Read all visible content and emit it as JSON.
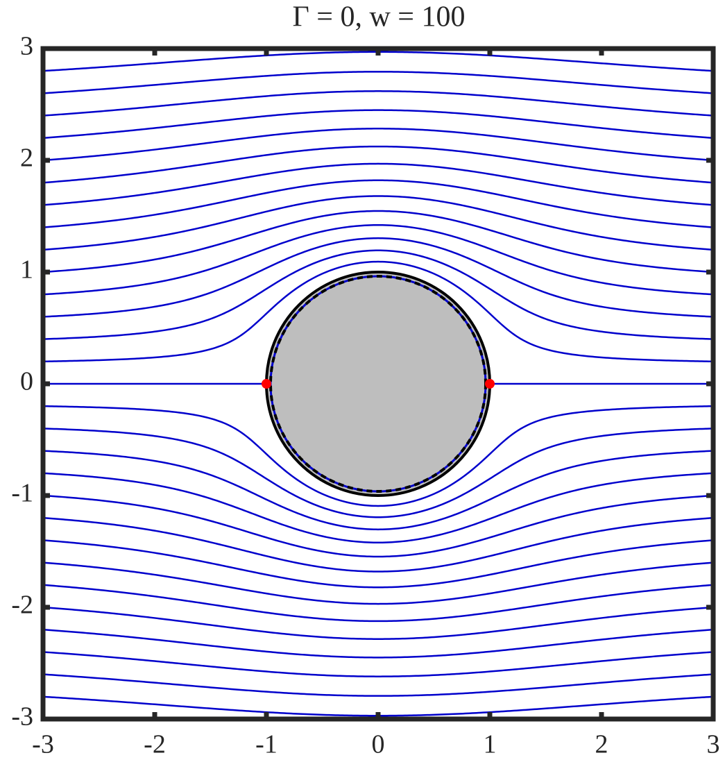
{
  "chart_data": {
    "type": "streamline",
    "title": "Γ = 0, w = 100",
    "xlim": [
      -3,
      3
    ],
    "ylim": [
      -3,
      3
    ],
    "xticks": [
      -3,
      -2,
      -1,
      0,
      1,
      2,
      3
    ],
    "yticks": [
      -3,
      -2,
      -1,
      0,
      1,
      2,
      3
    ],
    "start_x": -3,
    "start_y": [
      -2.8,
      -2.6,
      -2.4,
      -2.2,
      -2.0,
      -1.8,
      -1.6,
      -1.4,
      -1.2,
      -1.0,
      -0.8,
      -0.6,
      -0.4,
      -0.2,
      0,
      0.2,
      0.4,
      0.6,
      0.8,
      1.0,
      1.2,
      1.4,
      1.6,
      1.8,
      2.0,
      2.2,
      2.4,
      2.6,
      2.8
    ],
    "line_color": "#0000cc",
    "cylinder_radius": 1,
    "cylinder_color": "#bebebe",
    "stagnation_points": {
      "x": [
        -1,
        1
      ],
      "y": [
        0,
        0
      ],
      "color": "#ff0000"
    }
  }
}
